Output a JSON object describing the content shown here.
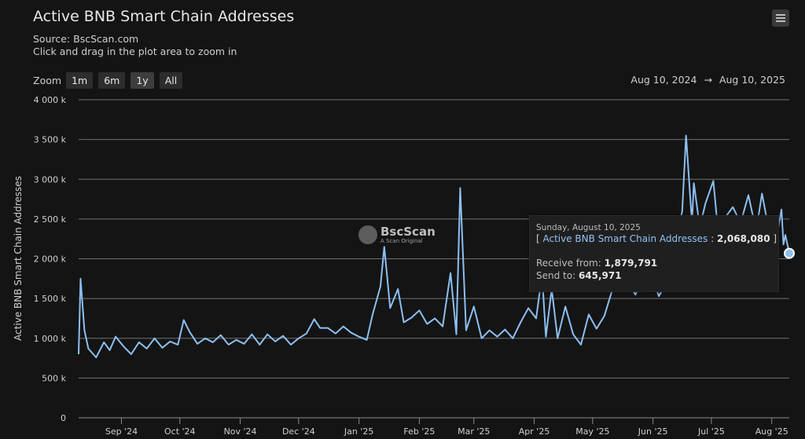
{
  "header": {
    "title": "Active BNB Smart Chain Addresses",
    "source": "Source: BscScan.com",
    "hint": "Click and drag in the plot area to zoom in",
    "menu_icon": "hamburger-menu-icon"
  },
  "zoom": {
    "label": "Zoom",
    "buttons": [
      "1m",
      "6m",
      "1y",
      "All"
    ],
    "active": "1y"
  },
  "range": {
    "from": "Aug 10, 2024",
    "arrow": "→",
    "to": "Aug 10, 2025"
  },
  "watermark": {
    "name": "BscScan",
    "tagline": "A Scan Original"
  },
  "tooltip": {
    "date": "Sunday, August 10, 2025",
    "series_open": "[ ",
    "series_name": "Active BNB Smart Chain Addresses",
    "series_sep": " : ",
    "series_value": "2,068,080",
    "series_close": " ]",
    "receive_label": "Receive from: ",
    "receive_value": "1,879,791",
    "send_label": "Send to: ",
    "send_value": "645,971"
  },
  "chart_data": {
    "type": "line",
    "title": "Active BNB Smart Chain Addresses",
    "ylabel": "Active BNB Smart Chain Addresses",
    "xlabel": "",
    "ylim": [
      0,
      4000000
    ],
    "yticks": [
      0,
      500000,
      1000000,
      1500000,
      2000000,
      2500000,
      3000000,
      3500000,
      4000000
    ],
    "ytick_labels": [
      "0",
      "500 k",
      "1 000 k",
      "1 500 k",
      "2 000 k",
      "2 500 k",
      "3 000 k",
      "3 500 k",
      "4 000 k"
    ],
    "xlim": [
      "2024-08-10",
      "2025-08-10"
    ],
    "xticks": [
      "2024-09-01",
      "2024-10-01",
      "2024-11-01",
      "2024-12-01",
      "2025-01-01",
      "2025-02-01",
      "2025-03-01",
      "2025-04-01",
      "2025-05-01",
      "2025-06-01",
      "2025-07-01",
      "2025-08-01"
    ],
    "xtick_labels": [
      "Sep '24",
      "Oct '24",
      "Nov '24",
      "Dec '24",
      "Jan '25",
      "Feb '25",
      "Mar '25",
      "Apr '25",
      "May '25",
      "Jun '25",
      "Jul '25",
      "Aug '25"
    ],
    "grid": true,
    "legend": "none",
    "line_color": "#8cc0f2",
    "series": [
      {
        "values": [
          [
            "2024-08-10",
            800000
          ],
          [
            "2024-08-11",
            1750000
          ],
          [
            "2024-08-13",
            1100000
          ],
          [
            "2024-08-15",
            870000
          ],
          [
            "2024-08-19",
            760000
          ],
          [
            "2024-08-23",
            950000
          ],
          [
            "2024-08-26",
            850000
          ],
          [
            "2024-08-29",
            1020000
          ],
          [
            "2024-09-02",
            900000
          ],
          [
            "2024-09-06",
            800000
          ],
          [
            "2024-09-10",
            950000
          ],
          [
            "2024-09-14",
            870000
          ],
          [
            "2024-09-18",
            1000000
          ],
          [
            "2024-09-22",
            880000
          ],
          [
            "2024-09-26",
            960000
          ],
          [
            "2024-09-30",
            920000
          ],
          [
            "2024-10-03",
            1230000
          ],
          [
            "2024-10-06",
            1080000
          ],
          [
            "2024-10-10",
            930000
          ],
          [
            "2024-10-14",
            1000000
          ],
          [
            "2024-10-18",
            950000
          ],
          [
            "2024-10-22",
            1040000
          ],
          [
            "2024-10-26",
            920000
          ],
          [
            "2024-10-30",
            980000
          ],
          [
            "2024-11-03",
            930000
          ],
          [
            "2024-11-07",
            1050000
          ],
          [
            "2024-11-11",
            920000
          ],
          [
            "2024-11-15",
            1050000
          ],
          [
            "2024-11-19",
            960000
          ],
          [
            "2024-11-23",
            1030000
          ],
          [
            "2024-11-27",
            920000
          ],
          [
            "2024-12-01",
            1000000
          ],
          [
            "2024-12-05",
            1060000
          ],
          [
            "2024-12-09",
            1240000
          ],
          [
            "2024-12-12",
            1130000
          ],
          [
            "2024-12-16",
            1130000
          ],
          [
            "2024-12-20",
            1060000
          ],
          [
            "2024-12-24",
            1150000
          ],
          [
            "2024-12-28",
            1070000
          ],
          [
            "2025-01-01",
            1020000
          ],
          [
            "2025-01-05",
            980000
          ],
          [
            "2025-01-08",
            1300000
          ],
          [
            "2025-01-12",
            1650000
          ],
          [
            "2025-01-14",
            2150000
          ],
          [
            "2025-01-17",
            1380000
          ],
          [
            "2025-01-21",
            1620000
          ],
          [
            "2025-01-24",
            1200000
          ],
          [
            "2025-01-28",
            1260000
          ],
          [
            "2025-02-01",
            1350000
          ],
          [
            "2025-02-05",
            1180000
          ],
          [
            "2025-02-09",
            1250000
          ],
          [
            "2025-02-13",
            1150000
          ],
          [
            "2025-02-17",
            1820000
          ],
          [
            "2025-02-20",
            1050000
          ],
          [
            "2025-02-22",
            2890000
          ],
          [
            "2025-02-25",
            1100000
          ],
          [
            "2025-03-01",
            1400000
          ],
          [
            "2025-03-05",
            1000000
          ],
          [
            "2025-03-09",
            1100000
          ],
          [
            "2025-03-13",
            1020000
          ],
          [
            "2025-03-17",
            1110000
          ],
          [
            "2025-03-21",
            1000000
          ],
          [
            "2025-03-25",
            1200000
          ],
          [
            "2025-03-29",
            1380000
          ],
          [
            "2025-04-02",
            1250000
          ],
          [
            "2025-04-05",
            1800000
          ],
          [
            "2025-04-07",
            1020000
          ],
          [
            "2025-04-10",
            1620000
          ],
          [
            "2025-04-13",
            1000000
          ],
          [
            "2025-04-17",
            1400000
          ],
          [
            "2025-04-21",
            1050000
          ],
          [
            "2025-04-25",
            920000
          ],
          [
            "2025-04-29",
            1300000
          ],
          [
            "2025-05-03",
            1120000
          ],
          [
            "2025-05-07",
            1280000
          ],
          [
            "2025-05-11",
            1600000
          ],
          [
            "2025-05-15",
            1800000
          ],
          [
            "2025-05-19",
            1700000
          ],
          [
            "2025-05-23",
            1550000
          ],
          [
            "2025-05-27",
            1800000
          ],
          [
            "2025-05-31",
            1800000
          ],
          [
            "2025-06-04",
            1530000
          ],
          [
            "2025-06-08",
            1700000
          ],
          [
            "2025-06-12",
            2100000
          ],
          [
            "2025-06-16",
            2600000
          ],
          [
            "2025-06-18",
            3550000
          ],
          [
            "2025-06-21",
            2450000
          ],
          [
            "2025-06-22",
            2950000
          ],
          [
            "2025-06-25",
            2400000
          ],
          [
            "2025-06-28",
            2700000
          ],
          [
            "2025-07-02",
            2980000
          ],
          [
            "2025-07-05",
            2200000
          ],
          [
            "2025-07-09",
            2550000
          ],
          [
            "2025-07-12",
            2650000
          ],
          [
            "2025-07-16",
            2450000
          ],
          [
            "2025-07-20",
            2800000
          ],
          [
            "2025-07-24",
            2350000
          ],
          [
            "2025-07-27",
            2820000
          ],
          [
            "2025-07-31",
            2300000
          ],
          [
            "2025-08-03",
            2200000
          ],
          [
            "2025-08-06",
            2620000
          ],
          [
            "2025-08-07",
            2180000
          ],
          [
            "2025-08-08",
            2300000
          ],
          [
            "2025-08-10",
            2068080
          ]
        ]
      }
    ]
  }
}
